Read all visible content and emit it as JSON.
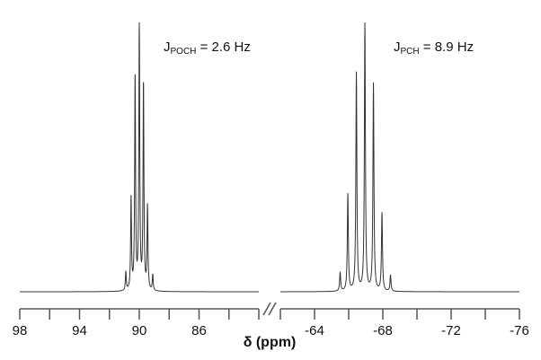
{
  "chart_data": {
    "type": "line",
    "xlabel": "δ  (ppm)",
    "axis_break": true,
    "panels": [
      {
        "name": "left",
        "xlim": [
          98,
          82
        ],
        "ticks": [
          98,
          96,
          94,
          92,
          90,
          88,
          86,
          84,
          82
        ],
        "tick_labels": [
          "98",
          "94",
          "90",
          "86"
        ],
        "tick_label_values": [
          98,
          94,
          90,
          86
        ],
        "coupling": {
          "symbol": "J",
          "subscript": "POCH",
          "text": " = 2.6 Hz"
        },
        "peaks": [
          {
            "ppm": 90.9,
            "height": 0.07
          },
          {
            "ppm": 90.55,
            "height": 0.34
          },
          {
            "ppm": 90.28,
            "height": 0.8
          },
          {
            "ppm": 90.0,
            "height": 1.0
          },
          {
            "ppm": 89.72,
            "height": 0.77
          },
          {
            "ppm": 89.45,
            "height": 0.31
          },
          {
            "ppm": 89.1,
            "height": 0.06
          }
        ]
      },
      {
        "name": "right",
        "xlim": [
          -62,
          -76
        ],
        "ticks": [
          -62,
          -64,
          -66,
          -68,
          -70,
          -72,
          -74,
          -76
        ],
        "tick_labels": [
          "-64",
          "-68",
          "-72",
          "-76"
        ],
        "tick_label_values": [
          -64,
          -68,
          -72,
          -76
        ],
        "coupling": {
          "symbol": "J",
          "subscript": "PCH",
          "text": " = 8.9 Hz"
        },
        "peaks": [
          {
            "ppm": -65.5,
            "height": 0.07
          },
          {
            "ppm": -65.95,
            "height": 0.36
          },
          {
            "ppm": -66.45,
            "height": 0.81
          },
          {
            "ppm": -66.95,
            "height": 1.0
          },
          {
            "ppm": -67.45,
            "height": 0.77
          },
          {
            "ppm": -67.95,
            "height": 0.29
          },
          {
            "ppm": -68.45,
            "height": 0.06
          }
        ]
      }
    ]
  }
}
